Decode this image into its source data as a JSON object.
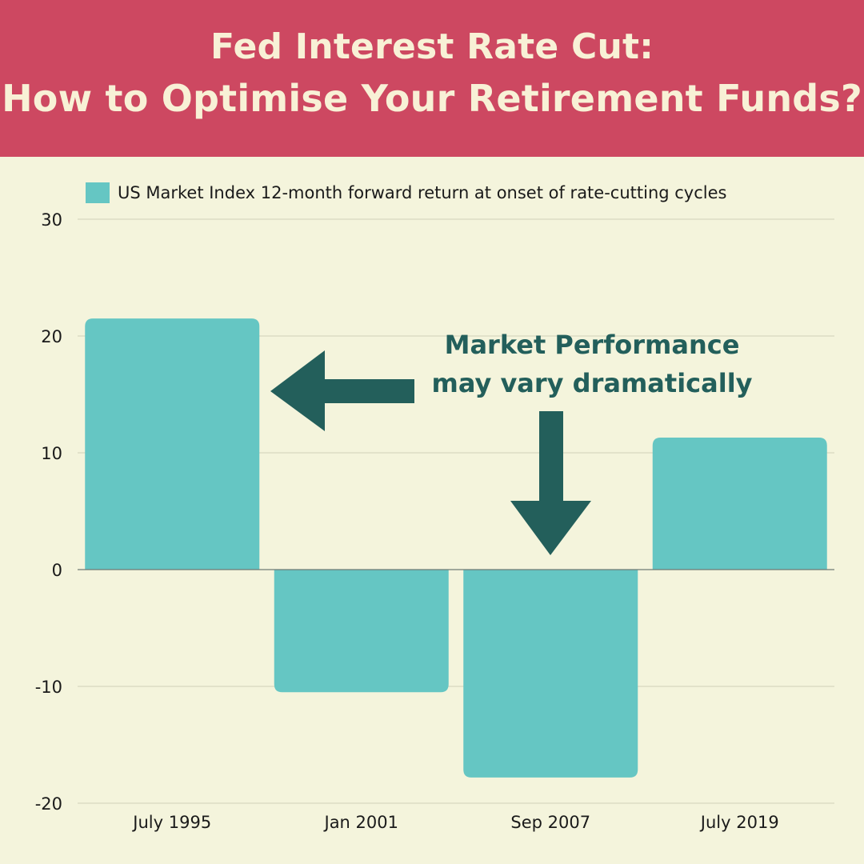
{
  "header": {
    "title_line1": "Fed Interest Rate Cut:",
    "title_line2": "How to Optimise Your Retirement Funds?"
  },
  "annotation": {
    "line1": "Market Performance",
    "line2": "may vary dramatically"
  },
  "colors": {
    "header_bg": "#cd4861",
    "title_text": "#f8f1d6",
    "background": "#f4f4dc",
    "bar": "#65c6c3",
    "arrow": "#235f5b",
    "annotation_text": "#235f5b",
    "gridline": "#cfcfb8",
    "axis_text": "#1a1a1a"
  },
  "chart_data": {
    "type": "bar",
    "categories": [
      "July 1995",
      "Jan 2001",
      "Sep 2007",
      "July 2019"
    ],
    "series": [
      {
        "name": "US Market Index 12-month forward return at onset of rate-cutting cycles",
        "values": [
          21.5,
          -10.5,
          -17.8,
          11.3
        ]
      }
    ],
    "ylim": [
      -20,
      30
    ],
    "yticks": [
      30,
      20,
      10,
      0,
      -10,
      -20
    ],
    "grid": true,
    "legend_position": "top-left",
    "title": "",
    "xlabel": "",
    "ylabel": ""
  }
}
